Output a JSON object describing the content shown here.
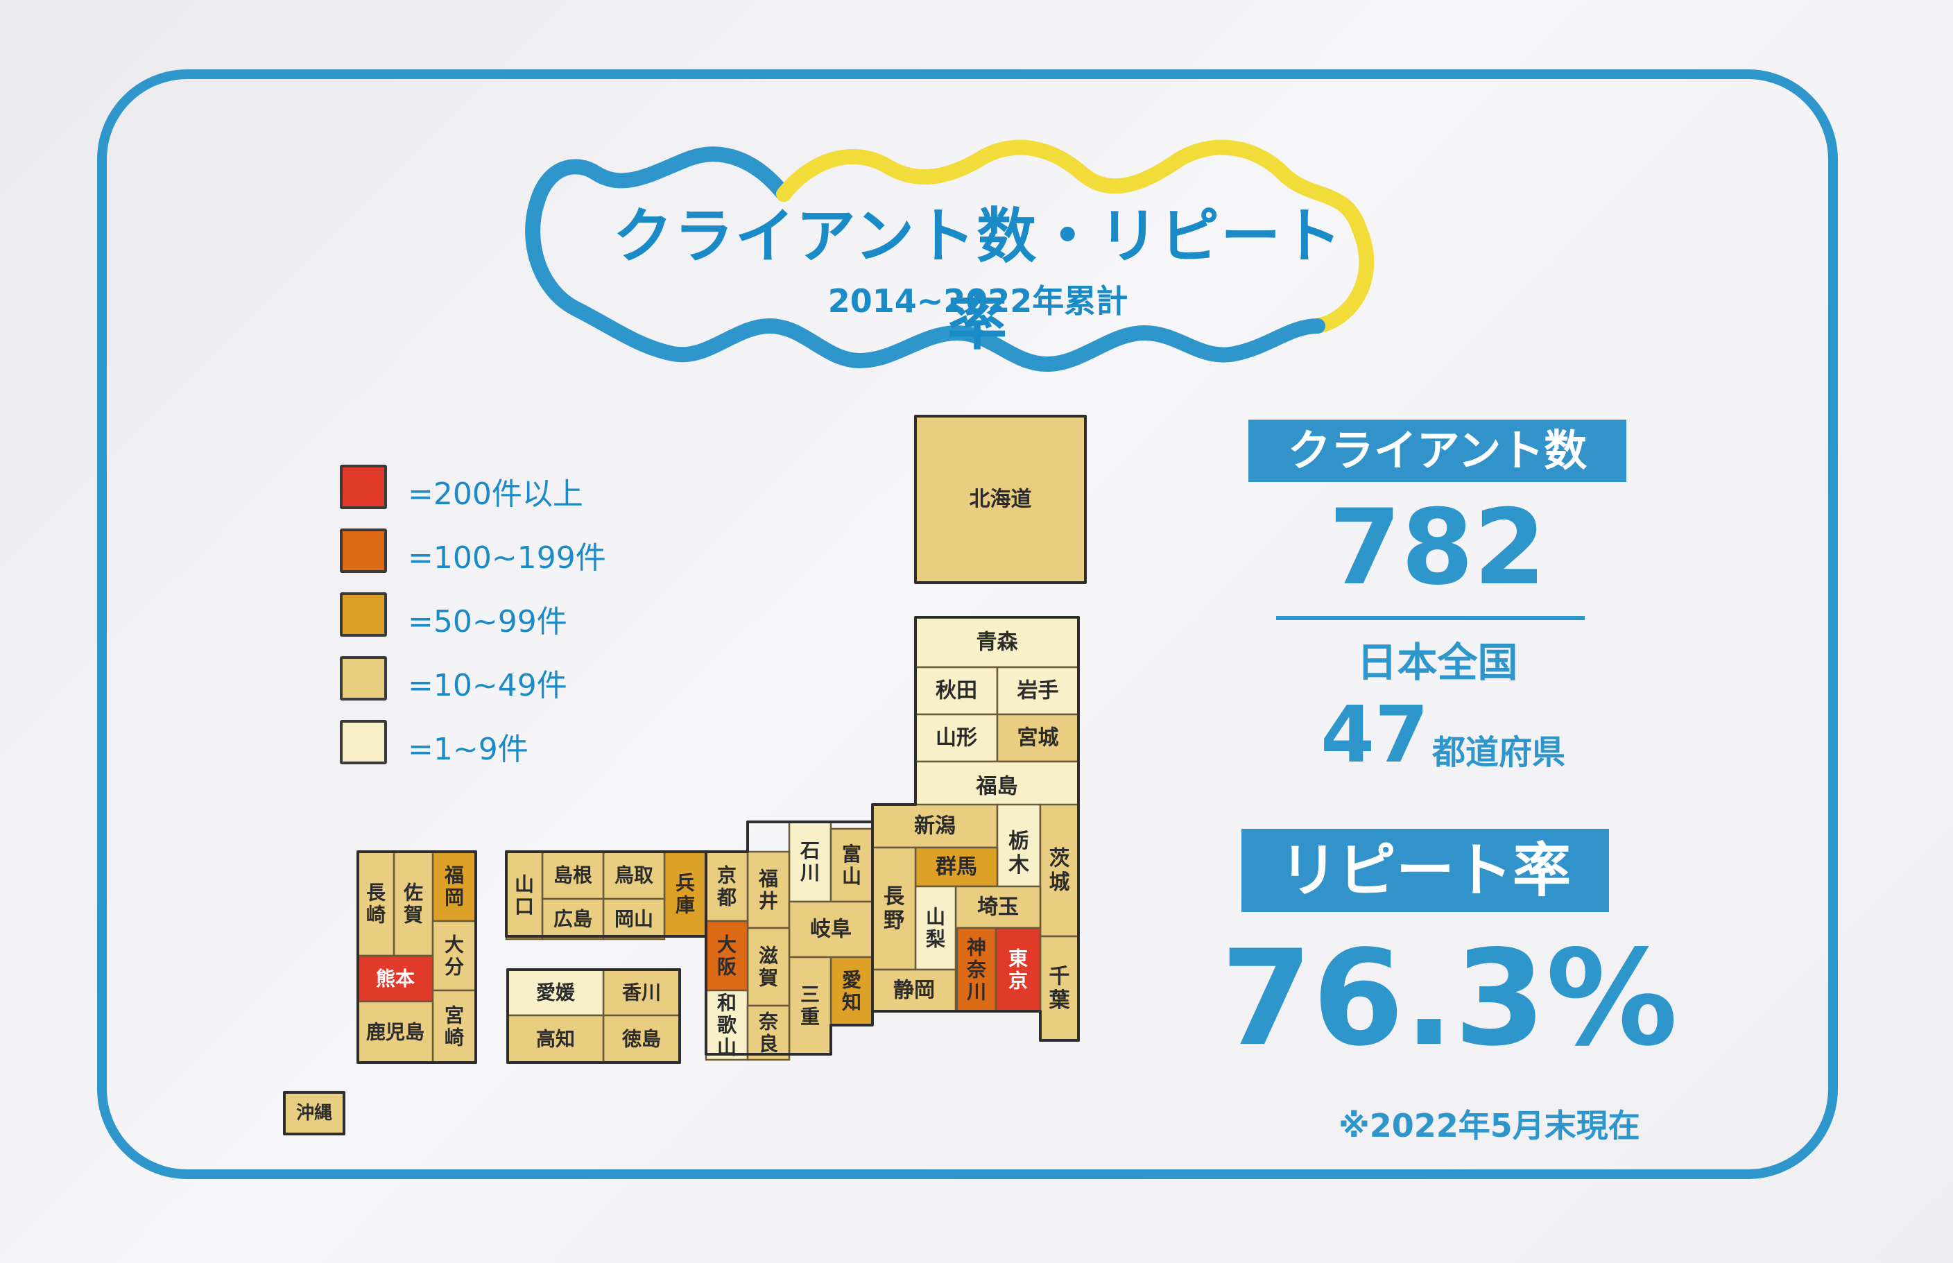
{
  "header": {
    "title": "クライアント数・リピート率",
    "subtitle": "2014~2022年累計"
  },
  "legend": [
    {
      "label": "=200件以上",
      "color": "#e03a2b"
    },
    {
      "label": "=100~199件",
      "color": "#dc6a16"
    },
    {
      "label": "=50~99件",
      "color": "#dca126"
    },
    {
      "label": "=10~49件",
      "color": "#e9cd80"
    },
    {
      "label": "=1~9件",
      "color": "#f7f0c8"
    }
  ],
  "prefectures": [
    {
      "name": "北海道",
      "tier": 4
    },
    {
      "name": "青森",
      "tier": 5
    },
    {
      "name": "秋田",
      "tier": 5
    },
    {
      "name": "岩手",
      "tier": 5
    },
    {
      "name": "山形",
      "tier": 5
    },
    {
      "name": "宮城",
      "tier": 4
    },
    {
      "name": "福島",
      "tier": 5
    },
    {
      "name": "新潟",
      "tier": 4
    },
    {
      "name": "栃木",
      "tier": 5
    },
    {
      "name": "茨城",
      "tier": 4
    },
    {
      "name": "群馬",
      "tier": 3
    },
    {
      "name": "埼玉",
      "tier": 4
    },
    {
      "name": "千葉",
      "tier": 4
    },
    {
      "name": "神奈川",
      "tier": 2
    },
    {
      "name": "東京",
      "tier": 1
    },
    {
      "name": "山梨",
      "tier": 5
    },
    {
      "name": "長野",
      "tier": 4
    },
    {
      "name": "静岡",
      "tier": 4
    },
    {
      "name": "石川",
      "tier": 5
    },
    {
      "name": "富山",
      "tier": 4
    },
    {
      "name": "福井",
      "tier": 4
    },
    {
      "name": "岐阜",
      "tier": 4
    },
    {
      "name": "愛知",
      "tier": 3
    },
    {
      "name": "三重",
      "tier": 4
    },
    {
      "name": "滋賀",
      "tier": 4
    },
    {
      "name": "京都",
      "tier": 4
    },
    {
      "name": "大阪",
      "tier": 2
    },
    {
      "name": "和歌山",
      "tier": 5
    },
    {
      "name": "奈良",
      "tier": 4
    },
    {
      "name": "兵庫",
      "tier": 3
    },
    {
      "name": "鳥取",
      "tier": 4
    },
    {
      "name": "島根",
      "tier": 4
    },
    {
      "name": "岡山",
      "tier": 4
    },
    {
      "name": "広島",
      "tier": 4
    },
    {
      "name": "山口",
      "tier": 4
    },
    {
      "name": "香川",
      "tier": 4
    },
    {
      "name": "徳島",
      "tier": 4
    },
    {
      "name": "愛媛",
      "tier": 5
    },
    {
      "name": "高知",
      "tier": 4
    },
    {
      "name": "福岡",
      "tier": 3
    },
    {
      "name": "佐賀",
      "tier": 4
    },
    {
      "name": "長崎",
      "tier": 4
    },
    {
      "name": "大分",
      "tier": 4
    },
    {
      "name": "熊本",
      "tier": 1
    },
    {
      "name": "宮崎",
      "tier": 4
    },
    {
      "name": "鹿児島",
      "tier": 4
    },
    {
      "name": "沖縄",
      "tier": 4
    }
  ],
  "stats": {
    "clients_label": "クライアント数",
    "clients_value": "782",
    "coverage_label": "日本全国",
    "coverage_value": "47",
    "coverage_unit": "都道府県",
    "repeat_label": "リピート率",
    "repeat_value": "76.3%",
    "note": "※2022年5月末現在"
  },
  "colors": {
    "frame": "#2f96cc",
    "wave_blue": "#2f96cc",
    "wave_yellow": "#f2dc3a",
    "badge": "#3193c9"
  }
}
